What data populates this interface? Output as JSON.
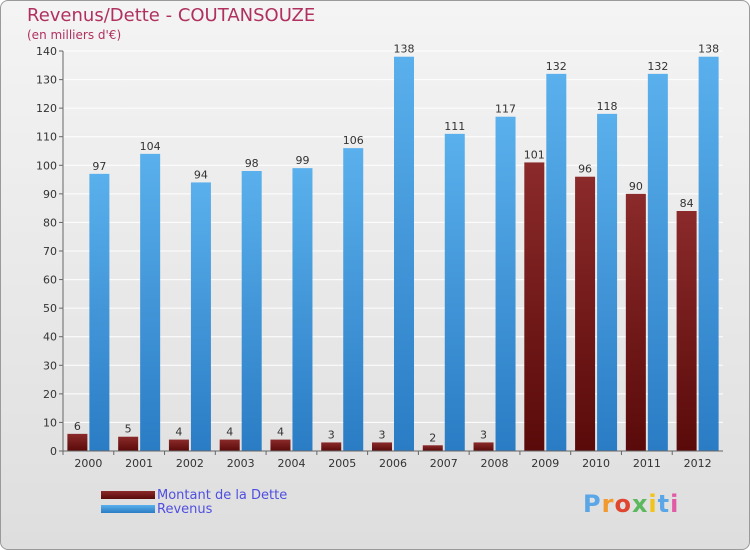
{
  "chart": {
    "title": "Revenus/Dette - COUTANSOUZE",
    "subtitle": "(en milliers d'€)"
  },
  "legend": {
    "dette": "Montant de la Dette",
    "revenus": "Revenus"
  },
  "logo": {
    "text": "Proxiti",
    "letters": [
      "P",
      "r",
      "o",
      "x",
      "i",
      "t",
      "i"
    ],
    "colors": [
      "#5aa6e6",
      "#f29a2e",
      "#e0452f",
      "#5cb85c",
      "#f0c419",
      "#5aa6e6",
      "#e05aa6"
    ]
  },
  "colors": {
    "dette_top": "#8b2a2a",
    "dette_bottom": "#5a0a0a",
    "revenus_top": "#5ab0ec",
    "revenus_bottom": "#2a7cc4",
    "title": "#b03060"
  },
  "chart_data": {
    "type": "bar",
    "title": "Revenus/Dette - COUTANSOUZE",
    "ylabel": "(en milliers d'€)",
    "xlabel": "",
    "categories": [
      "2000",
      "2001",
      "2002",
      "2003",
      "2004",
      "2005",
      "2006",
      "2007",
      "2008",
      "2009",
      "2010",
      "2011",
      "2012"
    ],
    "series": [
      {
        "name": "Montant de la Dette",
        "values": [
          6,
          5,
          4,
          4,
          4,
          3,
          3,
          2,
          3,
          101,
          96,
          90,
          84
        ]
      },
      {
        "name": "Revenus",
        "values": [
          97,
          104,
          94,
          98,
          99,
          106,
          138,
          111,
          117,
          132,
          118,
          132,
          138
        ]
      }
    ],
    "ylim": [
      0,
      140
    ],
    "yticks": [
      0,
      10,
      20,
      30,
      40,
      50,
      60,
      70,
      80,
      90,
      100,
      110,
      120,
      130,
      140
    ],
    "grid": true,
    "legend": "bottom-left"
  }
}
